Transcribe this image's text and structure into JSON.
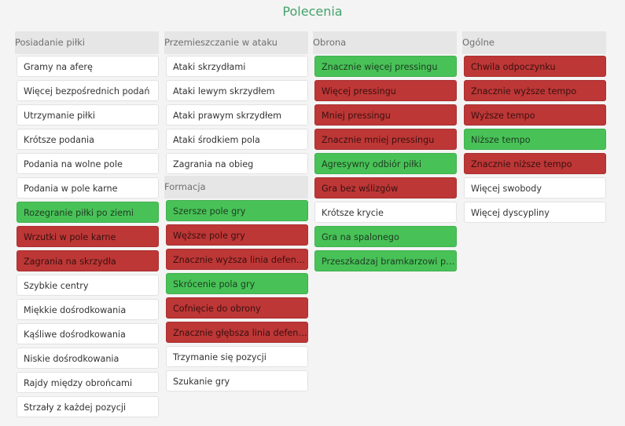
{
  "title": "Polecenia",
  "colors": {
    "green": "#48c257",
    "red": "#bd3736",
    "neutral": "#ffffff",
    "title": "#43a26a"
  },
  "columns": [
    {
      "header": "Posiadanie piłki",
      "items": [
        {
          "label": "Gramy na aferę",
          "state": "neutral"
        },
        {
          "label": "Więcej bezpośrednich podań",
          "state": "neutral"
        },
        {
          "label": "Utrzymanie piłki",
          "state": "neutral"
        },
        {
          "label": "Krótsze podania",
          "state": "neutral"
        },
        {
          "label": "Podania na wolne pole",
          "state": "neutral"
        },
        {
          "label": "Podania w pole karne",
          "state": "neutral"
        },
        {
          "label": "Rozegranie piłki po ziemi",
          "state": "green"
        },
        {
          "label": "Wrzutki w pole karne",
          "state": "red"
        },
        {
          "label": "Zagrania na skrzydła",
          "state": "red"
        },
        {
          "label": "Szybkie centry",
          "state": "neutral"
        },
        {
          "label": "Miękkie dośrodkowania",
          "state": "neutral"
        },
        {
          "label": "Kąśliwe dośrodkowania",
          "state": "neutral"
        },
        {
          "label": "Niskie dośrodkowania",
          "state": "neutral"
        },
        {
          "label": "Rajdy między obrońcami",
          "state": "neutral"
        },
        {
          "label": "Strzały z każdej pozycji",
          "state": "neutral"
        }
      ]
    },
    {
      "header": "Przemieszczanie w ataku",
      "items": [
        {
          "label": "Ataki skrzydłami",
          "state": "neutral"
        },
        {
          "label": "Ataki lewym skrzydłem",
          "state": "neutral"
        },
        {
          "label": "Ataki prawym skrzydłem",
          "state": "neutral"
        },
        {
          "label": "Ataki środkiem pola",
          "state": "neutral"
        },
        {
          "label": "Zagrania na obieg",
          "state": "neutral"
        }
      ],
      "subheader": "Formacja",
      "subitems": [
        {
          "label": "Szersze pole gry",
          "state": "green"
        },
        {
          "label": "Węższe pole gry",
          "state": "red"
        },
        {
          "label": "Znacznie wyższa linia defensywy",
          "state": "red"
        },
        {
          "label": "Skrócenie pola gry",
          "state": "green"
        },
        {
          "label": "Cofnięcie do obrony",
          "state": "red"
        },
        {
          "label": "Znacznie głębsza linia defensywy",
          "state": "red"
        },
        {
          "label": "Trzymanie się pozycji",
          "state": "neutral"
        },
        {
          "label": "Szukanie gry",
          "state": "neutral"
        }
      ]
    },
    {
      "header": "Obrona",
      "items": [
        {
          "label": "Znacznie więcej pressingu",
          "state": "green"
        },
        {
          "label": "Więcej pressingu",
          "state": "red"
        },
        {
          "label": "Mniej pressingu",
          "state": "red"
        },
        {
          "label": "Znacznie mniej pressingu",
          "state": "red"
        },
        {
          "label": "Agresywny odbiór piłki",
          "state": "green"
        },
        {
          "label": "Gra bez wślizgów",
          "state": "red"
        },
        {
          "label": "Krótsze krycie",
          "state": "neutral"
        },
        {
          "label": "Gra na spalonego",
          "state": "green"
        },
        {
          "label": "Przeszkadzaj bramkarzowi przy wznowieniach",
          "state": "green"
        }
      ]
    },
    {
      "header": "Ogólne",
      "items": [
        {
          "label": "Chwila odpoczynku",
          "state": "red"
        },
        {
          "label": "Znacznie wyższe tempo",
          "state": "red"
        },
        {
          "label": "Wyższe tempo",
          "state": "red"
        },
        {
          "label": "Niższe tempo",
          "state": "green"
        },
        {
          "label": "Znacznie niższe tempo",
          "state": "red"
        },
        {
          "label": "Więcej swobody",
          "state": "neutral"
        },
        {
          "label": "Więcej dyscypliny",
          "state": "neutral"
        }
      ]
    }
  ]
}
